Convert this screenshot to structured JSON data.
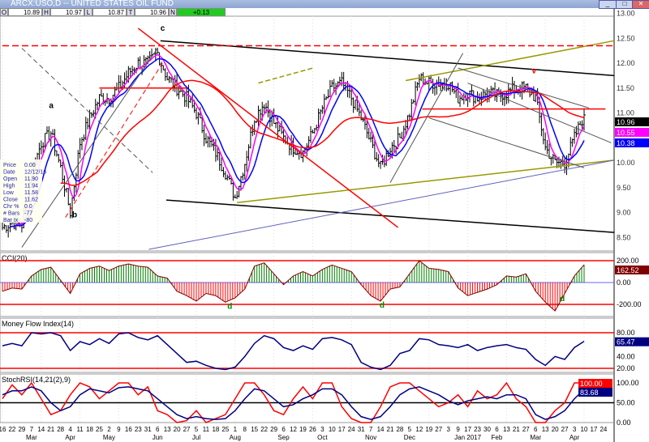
{
  "window": {
    "title": "ARCX:USO,D -- UNITED STATES OIL FUND",
    "min": "_",
    "max": "□",
    "close": "✕"
  },
  "ohlc": {
    "o_key": "O",
    "o": "10.89",
    "h_key": "H",
    "h": "10.97",
    "l_key": "L",
    "l": "10.87",
    "t_key": "T",
    "t": "10.96",
    "n_key": "N",
    "n": "+0.13"
  },
  "infobox": [
    [
      "Price",
      "0.00"
    ],
    [
      "Date",
      "12/12/16"
    ],
    [
      "Open",
      "11.90"
    ],
    [
      "High",
      "11.94"
    ],
    [
      "Low",
      "11.58"
    ],
    [
      "Close",
      "11.62"
    ],
    [
      "Chr %",
      "0.0"
    ],
    [
      "# Bars",
      "-77"
    ],
    [
      "Bar Ix",
      "-80"
    ]
  ],
  "colors": {
    "bars": "#000000",
    "ma_fast": "#ff00ff",
    "ma_mid": "#0000ff",
    "ma_slow": "#ff0000",
    "cci_pos": "#008000",
    "cci_neg": "#ff0000",
    "mfi": "#000080",
    "stoch_k": "#ff0000",
    "stoch_d": "#000080",
    "olive": "#999900"
  },
  "chart_data": [
    {
      "type": "ohlc",
      "title": "ARCX:USO,D -- UNITED STATES OIL FUND",
      "ylim": [
        8.3,
        13.0
      ],
      "yticks": [
        "13.00",
        "12.50",
        "12.00",
        "11.50",
        "11.00",
        "10.00",
        "9.50",
        "9.00",
        "8.50"
      ],
      "last_labels": [
        {
          "text": "10.96",
          "color": "#000000",
          "fg": "#ffffff",
          "value": 10.96
        },
        {
          "text": "10.55",
          "color": "#ff00ff",
          "fg": "#ffffff",
          "value": 10.55
        },
        {
          "text": "10.38",
          "color": "#0000ff",
          "fg": "#ffffff",
          "value": 10.38
        }
      ],
      "weekly_close": [
        8.7,
        8.8,
        8.75,
        9.8,
        10.4,
        10.6,
        9.9,
        9.0,
        10.4,
        10.9,
        11.3,
        11.3,
        11.5,
        11.8,
        12.0,
        12.0,
        12.2,
        11.7,
        11.5,
        11.3,
        11.0,
        10.5,
        10.2,
        9.8,
        9.3,
        10.0,
        10.9,
        11.2,
        10.8,
        10.5,
        10.3,
        10.2,
        10.6,
        11.1,
        11.5,
        11.6,
        11.3,
        10.9,
        10.4,
        9.9,
        10.3,
        10.5,
        11.0,
        11.7,
        11.6,
        11.6,
        11.6,
        11.3,
        11.4,
        11.3,
        11.4,
        11.35,
        11.4,
        11.5,
        11.5,
        11.3,
        10.3,
        10.0,
        10.0,
        10.5,
        10.96
      ],
      "annotations": [
        {
          "text": "a",
          "x": 4.8,
          "y": 11.1,
          "color": "#000"
        },
        {
          "text": "b",
          "x": 7.2,
          "y": 8.9,
          "color": "#000"
        },
        {
          "text": "c",
          "x": 16.3,
          "y": 12.65,
          "color": "#000"
        },
        {
          "text": "v",
          "x": 54.6,
          "y": 11.8,
          "color": "#f00"
        }
      ],
      "lines": [
        {
          "color": "#000",
          "w": 1.5,
          "p": [
            [
              16.3,
              12.45
            ],
            [
              63.1,
              11.75
            ]
          ]
        },
        {
          "color": "#000",
          "w": 1.5,
          "p": [
            [
              16.9,
              9.25
            ],
            [
              63.1,
              8.6
            ]
          ]
        },
        {
          "color": "#999900",
          "w": 1.5,
          "p": [
            [
              24.2,
              9.2
            ],
            [
              63.1,
              10.05
            ]
          ]
        },
        {
          "color": "#999900",
          "w": 1.5,
          "p": [
            [
              41.6,
              11.65
            ],
            [
              63.1,
              12.45
            ]
          ]
        },
        {
          "color": "#999900",
          "w": 1.5,
          "dash": "6,3",
          "p": [
            [
              26.4,
              11.6
            ],
            [
              32,
              11.9
            ]
          ]
        },
        {
          "color": "#6060c0",
          "w": 1,
          "p": [
            [
              15.1,
              8.26
            ],
            [
              63.1,
              10.05
            ]
          ]
        },
        {
          "color": "#f00",
          "w": 1.5,
          "p": [
            [
              14,
              12.7
            ],
            [
              40.8,
              8.7
            ]
          ]
        },
        {
          "color": "#f00",
          "w": 1,
          "dash": "6,4",
          "p": [
            [
              6.5,
              8.9
            ],
            [
              16.5,
              12.0
            ]
          ]
        },
        {
          "color": "#f00",
          "w": 1.5,
          "dash": "8,4",
          "p": [
            [
              0,
              12.35
            ],
            [
              63.1,
              12.35
            ]
          ]
        },
        {
          "color": "#f00",
          "w": 1.5,
          "p": [
            [
              43.3,
              11.08
            ],
            [
              62.2,
              11.08
            ]
          ]
        },
        {
          "color": "#f00",
          "w": 1.5,
          "p": [
            [
              10,
              11.5
            ],
            [
              19,
              11.5
            ]
          ]
        },
        {
          "color": "#555",
          "w": 1,
          "p": [
            [
              2,
              8.3
            ],
            [
              16,
              12.3
            ]
          ]
        },
        {
          "color": "#555",
          "w": 1,
          "dash": "6,4",
          "p": [
            [
              2,
              12.3
            ],
            [
              15.5,
              9.8
            ]
          ]
        },
        {
          "color": "#555",
          "w": 1,
          "p": [
            [
              40,
              9.6
            ],
            [
              47.5,
              12.2
            ]
          ]
        },
        {
          "color": "#555",
          "w": 1,
          "p": [
            [
              47,
              11.9
            ],
            [
              60.5,
              11.1
            ]
          ]
        },
        {
          "color": "#555",
          "w": 1,
          "p": [
            [
              48,
              11.6
            ],
            [
              62.8,
              10.4
            ]
          ]
        },
        {
          "color": "#555",
          "w": 1,
          "p": [
            [
              44,
              10.9
            ],
            [
              60,
              9.9
            ]
          ]
        }
      ]
    },
    {
      "type": "bar",
      "title": "CCI(20)",
      "ylim": [
        -300,
        250
      ],
      "yticks": [
        "200.00",
        "0.00",
        "-200.00"
      ],
      "levels": [
        200,
        -200
      ],
      "last_label": {
        "text": "162.52",
        "color": "#800000"
      },
      "values": [
        -80,
        -50,
        -60,
        60,
        120,
        140,
        20,
        -100,
        80,
        130,
        150,
        110,
        150,
        170,
        150,
        140,
        60,
        40,
        -80,
        -120,
        -170,
        -100,
        -120,
        -180,
        -140,
        -60,
        150,
        180,
        80,
        -20,
        60,
        100,
        60,
        120,
        160,
        130,
        100,
        -20,
        -120,
        -170,
        -60,
        -40,
        80,
        200,
        130,
        120,
        100,
        -50,
        -120,
        -90,
        -60,
        -20,
        60,
        50,
        80,
        -80,
        -180,
        -260,
        -100,
        60,
        162.52
      ],
      "annotations": [
        {
          "text": "d",
          "x": 23.2,
          "y": -240
        },
        {
          "text": "d",
          "x": 38.9,
          "y": -230
        },
        {
          "text": "d",
          "x": 57.5,
          "y": -170
        }
      ]
    },
    {
      "type": "line",
      "title": "Money Flow Index(14)",
      "ylim": [
        0,
        100
      ],
      "yticks": [
        "80.00",
        "40.00",
        "20.00"
      ],
      "levels": [
        80,
        20
      ],
      "last_label": {
        "text": "65.47",
        "color": "#000080"
      },
      "values": [
        58,
        62,
        58,
        80,
        78,
        80,
        75,
        50,
        65,
        60,
        70,
        62,
        78,
        80,
        72,
        68,
        75,
        60,
        45,
        30,
        32,
        25,
        20,
        18,
        22,
        40,
        62,
        75,
        70,
        55,
        50,
        58,
        52,
        70,
        72,
        68,
        60,
        30,
        22,
        18,
        25,
        45,
        50,
        70,
        68,
        60,
        58,
        55,
        60,
        50,
        55,
        58,
        60,
        55,
        52,
        35,
        25,
        40,
        35,
        55,
        65.47
      ]
    },
    {
      "type": "line",
      "title": "StochRSI(14,21(2),9)",
      "ylim": [
        0,
        100
      ],
      "yticks": [
        "100.00",
        "50.00",
        "0.00"
      ],
      "levels": [
        50
      ],
      "last_labels": [
        {
          "text": "100.00",
          "color": "#ff0000"
        },
        {
          "text": "83.68",
          "color": "#000080"
        }
      ],
      "series": [
        {
          "values": [
            60,
            95,
            70,
            100,
            60,
            20,
            30,
            70,
            100,
            90,
            60,
            80,
            100,
            100,
            70,
            90,
            30,
            20,
            0,
            5,
            30,
            0,
            10,
            20,
            60,
            100,
            100,
            70,
            30,
            20,
            60,
            90,
            60,
            100,
            100,
            40,
            10,
            0,
            0,
            40,
            90,
            100,
            100,
            80,
            60,
            40,
            50,
            70,
            40,
            80,
            60,
            70,
            100,
            60,
            40,
            0,
            0,
            30,
            50,
            100,
            100
          ]
        },
        {
          "values": [
            70,
            80,
            80,
            90,
            80,
            50,
            30,
            40,
            70,
            85,
            80,
            75,
            88,
            90,
            85,
            80,
            60,
            40,
            20,
            10,
            15,
            10,
            8,
            10,
            30,
            60,
            85,
            80,
            60,
            40,
            45,
            60,
            70,
            85,
            85,
            70,
            40,
            15,
            8,
            15,
            40,
            70,
            85,
            90,
            80,
            70,
            55,
            45,
            55,
            60,
            65,
            60,
            70,
            70,
            60,
            20,
            8,
            15,
            30,
            60,
            83.68
          ]
        }
      ]
    }
  ],
  "xaxis": {
    "ticks": [
      "16",
      "22",
      "29",
      "7",
      "14",
      "21",
      "28",
      "4",
      "11",
      "18",
      "25",
      "2",
      "9",
      "16",
      "23",
      "31",
      "6",
      "13",
      "20",
      "27",
      "5",
      "11",
      "18",
      "25",
      "1",
      "8",
      "15",
      "22",
      "29",
      "6",
      "12",
      "19",
      "26",
      "3",
      "10",
      "17",
      "24",
      "31",
      "7",
      "14",
      "21",
      "28",
      "5",
      "12",
      "19",
      "27",
      "3",
      "9",
      "17",
      "23",
      "30",
      "6",
      "13",
      "21",
      "27",
      "6",
      "13",
      "20",
      "27",
      "3",
      "10",
      "17",
      "24"
    ],
    "months": [
      [
        "Mar",
        3
      ],
      [
        "Apr",
        7
      ],
      [
        "May",
        11
      ],
      [
        "Jun",
        16
      ],
      [
        "Jul",
        20
      ],
      [
        "Aug",
        24
      ],
      [
        "Sep",
        29
      ],
      [
        "Oct",
        33
      ],
      [
        "Nov",
        38
      ],
      [
        "Dec",
        42
      ],
      [
        "Jan 2017",
        48
      ],
      [
        "Feb",
        51
      ],
      [
        "Mar",
        55
      ],
      [
        "Apr",
        59
      ]
    ]
  }
}
